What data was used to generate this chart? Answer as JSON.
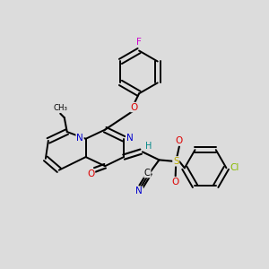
{
  "bg": "#dcdcdc",
  "cb": "#000000",
  "cN": "#0000cc",
  "cO": "#dd0000",
  "cF": "#cc00cc",
  "cCl": "#88bb00",
  "cS": "#bbaa00",
  "cH": "#008888",
  "lwb": 1.5,
  "lwr": 1.4,
  "figsize": [
    3.0,
    3.0
  ],
  "dpi": 100,
  "xlim": [
    0,
    1
  ],
  "ylim": [
    0,
    1
  ]
}
